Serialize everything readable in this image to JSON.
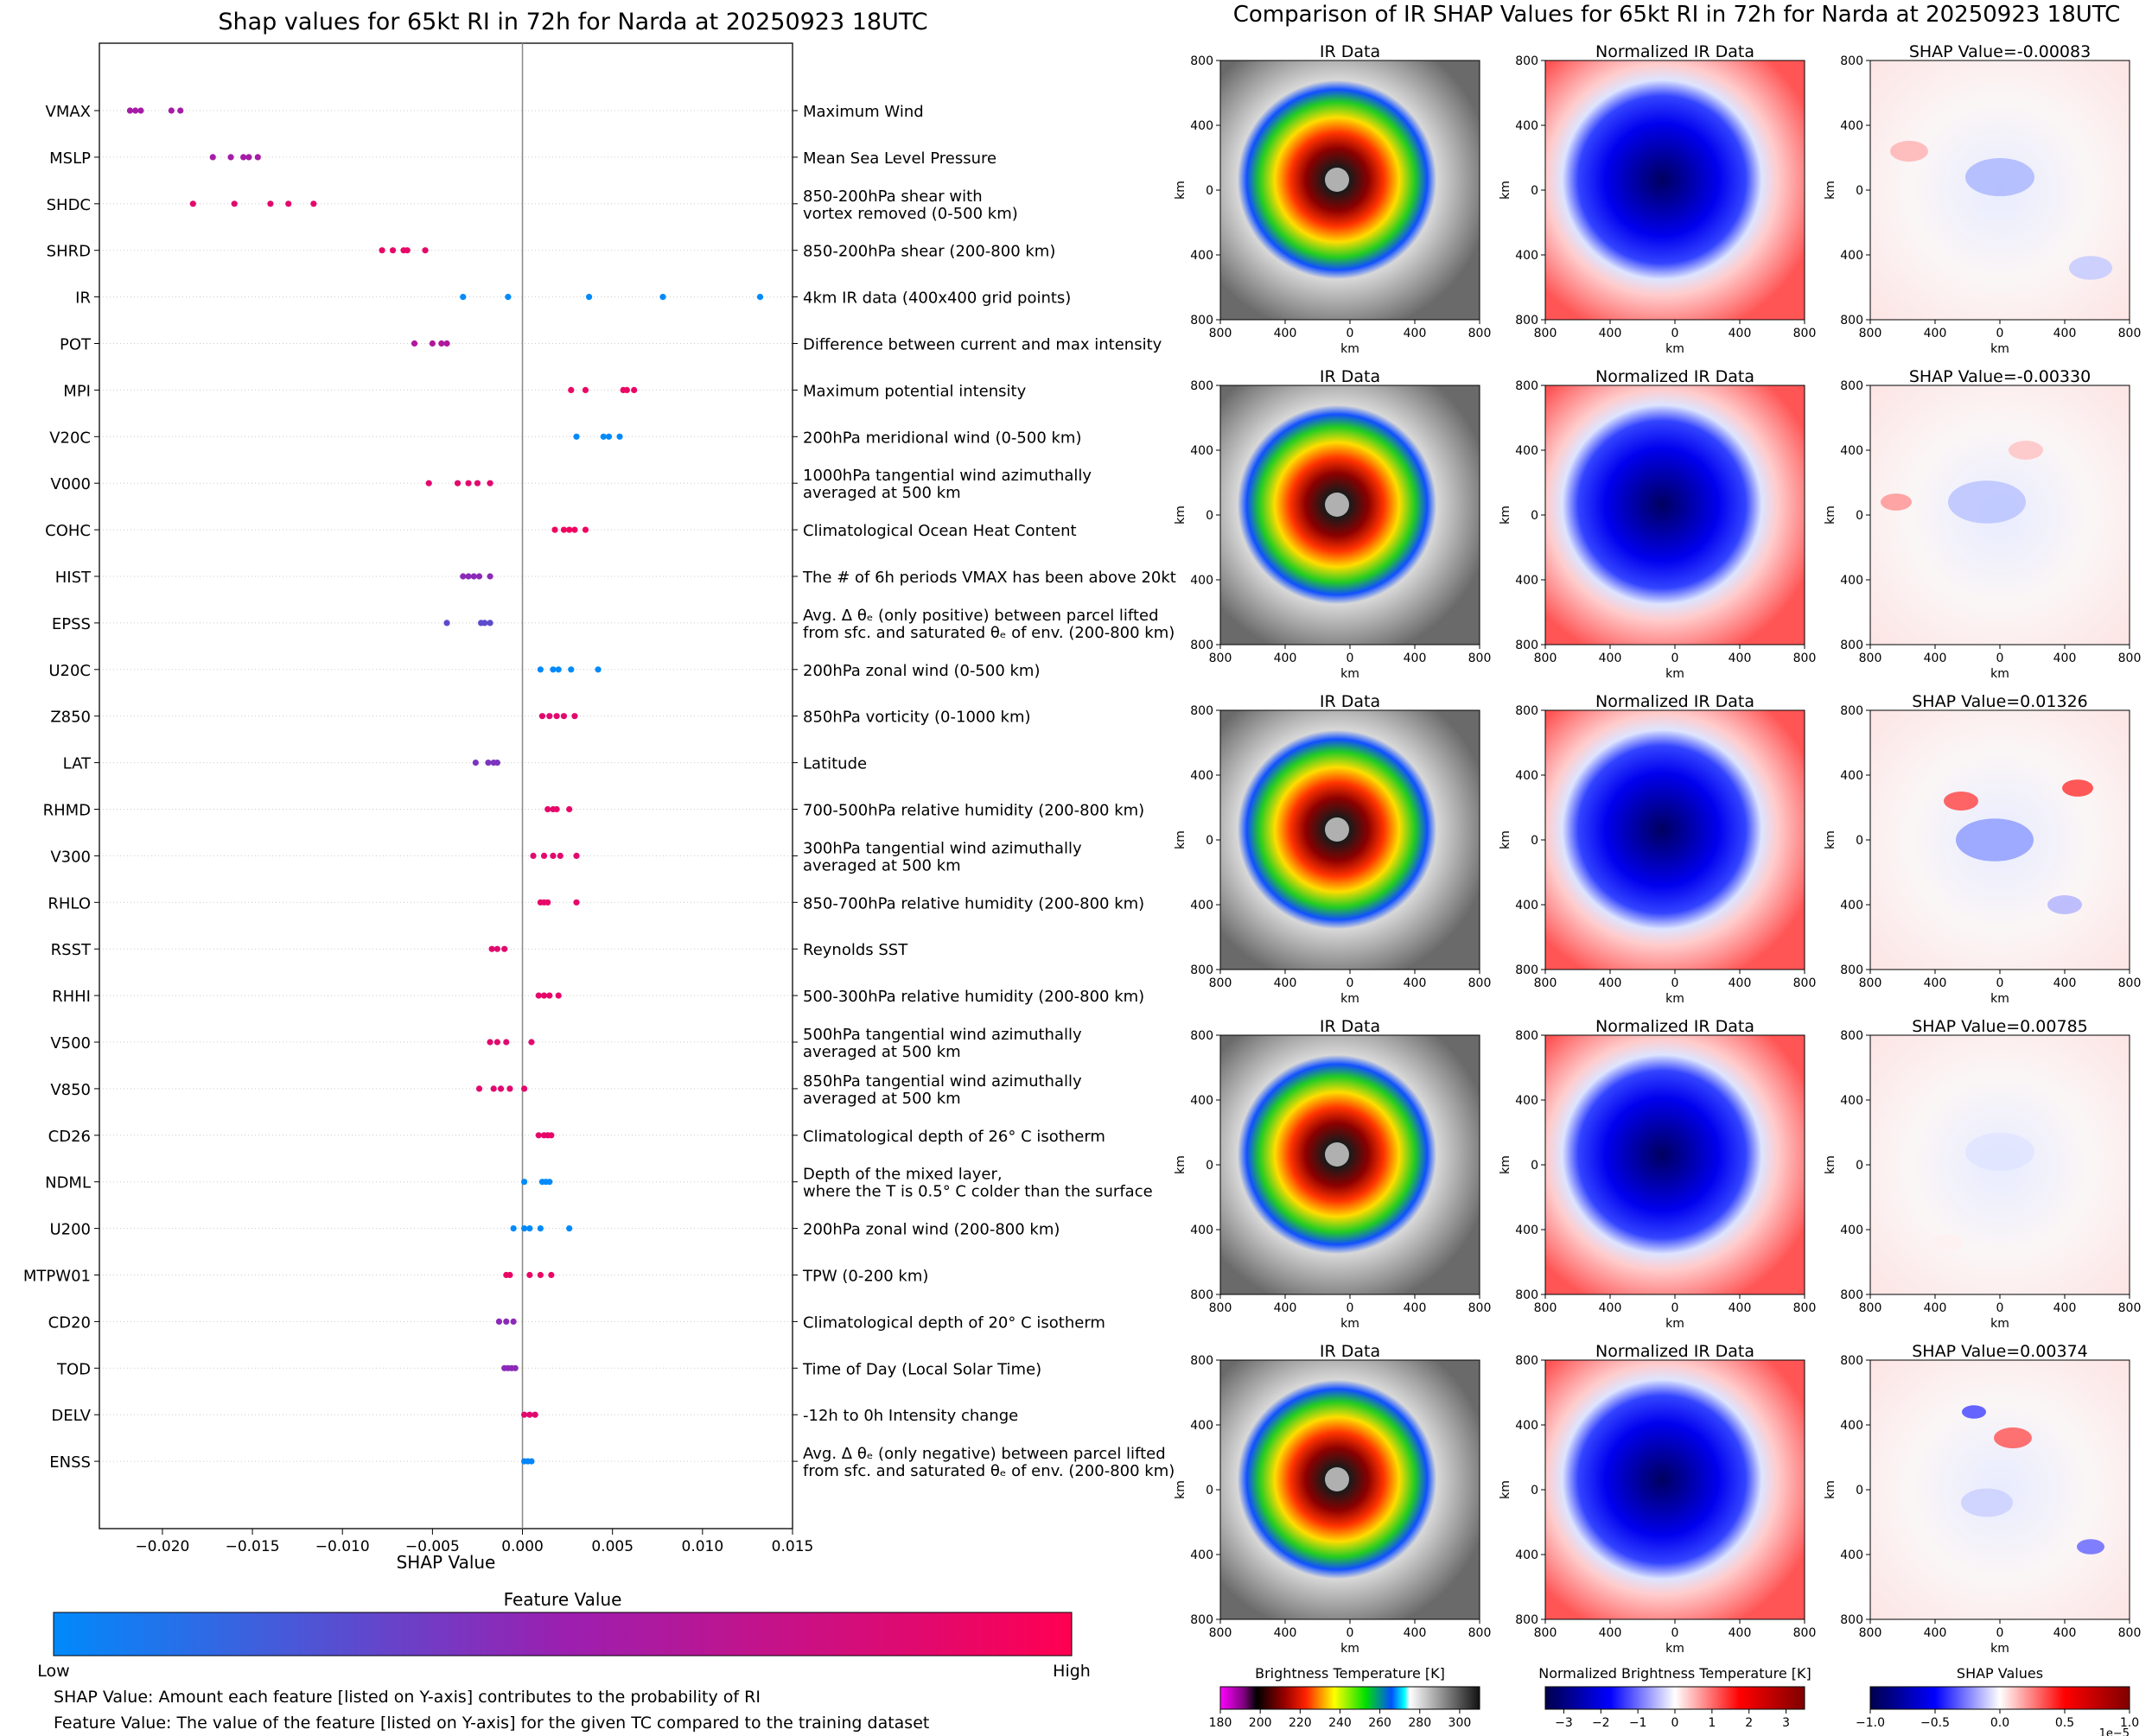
{
  "chart_data": [
    {
      "type": "scatter",
      "title": "Shap values for 65kt RI in 72h for Narda at 20250923 18UTC",
      "xlabel": "SHAP Value",
      "xlim": [
        -0.0235,
        0.015
      ],
      "xticks": [
        -0.02,
        -0.015,
        -0.01,
        -0.005,
        0.0,
        0.005,
        0.01,
        0.015
      ],
      "xtick_labels": [
        "−0.020",
        "−0.015",
        "−0.010",
        "−0.005",
        "0.000",
        "0.005",
        "0.010",
        "0.015"
      ],
      "colorbar": {
        "title": "Feature Value",
        "low_label": "Low",
        "high_label": "High",
        "low_color": "#008afb",
        "mid_color": "#9b1fb0",
        "high_color": "#ff0052"
      },
      "features": [
        {
          "name": "VMAX",
          "desc": [
            "Maximum Wind"
          ],
          "points": [
            [
              -0.0218,
              0.55
            ],
            [
              -0.0215,
              0.55
            ],
            [
              -0.0212,
              0.55
            ],
            [
              -0.0195,
              0.55
            ],
            [
              -0.019,
              0.55
            ]
          ]
        },
        {
          "name": "MSLP",
          "desc": [
            "Mean Sea Level Pressure"
          ],
          "points": [
            [
              -0.0172,
              0.55
            ],
            [
              -0.0162,
              0.55
            ],
            [
              -0.0155,
              0.55
            ],
            [
              -0.0152,
              0.55
            ],
            [
              -0.0147,
              0.55
            ]
          ]
        },
        {
          "name": "SHDC",
          "desc": [
            "850-200hPa shear with",
            "vortex removed (0-500 km)"
          ],
          "points": [
            [
              -0.0183,
              0.85
            ],
            [
              -0.016,
              0.85
            ],
            [
              -0.014,
              0.85
            ],
            [
              -0.013,
              0.85
            ],
            [
              -0.0116,
              0.85
            ]
          ]
        },
        {
          "name": "SHRD",
          "desc": [
            "850-200hPa shear (200-800 km)"
          ],
          "points": [
            [
              -0.0078,
              0.88
            ],
            [
              -0.0072,
              0.88
            ],
            [
              -0.0066,
              0.88
            ],
            [
              -0.0064,
              0.88
            ],
            [
              -0.0054,
              0.88
            ]
          ]
        },
        {
          "name": "IR",
          "desc": [
            "4km IR data (400x400 grid points)"
          ],
          "points": [
            [
              -0.0033,
              0.0
            ],
            [
              -0.0008,
              0.0
            ],
            [
              0.0037,
              0.0
            ],
            [
              0.0078,
              0.0
            ],
            [
              0.0132,
              0.0
            ]
          ]
        },
        {
          "name": "POT",
          "desc": [
            "Difference between current and max intensity"
          ],
          "points": [
            [
              -0.006,
              0.6
            ],
            [
              -0.005,
              0.6
            ],
            [
              -0.0045,
              0.6
            ],
            [
              -0.0042,
              0.6
            ]
          ]
        },
        {
          "name": "MPI",
          "desc": [
            "Maximum potential intensity"
          ],
          "points": [
            [
              0.0027,
              0.9
            ],
            [
              0.0035,
              0.9
            ],
            [
              0.0056,
              0.9
            ],
            [
              0.0058,
              0.9
            ],
            [
              0.0062,
              0.9
            ]
          ]
        },
        {
          "name": "V20C",
          "desc": [
            "200hPa meridional wind (0-500 km)"
          ],
          "points": [
            [
              0.003,
              0.0
            ],
            [
              0.0045,
              0.0
            ],
            [
              0.0048,
              0.0
            ],
            [
              0.0054,
              0.0
            ]
          ]
        },
        {
          "name": "V000",
          "desc": [
            "1000hPa tangential wind azimuthally",
            "averaged at 500 km"
          ],
          "points": [
            [
              -0.0052,
              0.85
            ],
            [
              -0.0036,
              0.85
            ],
            [
              -0.003,
              0.85
            ],
            [
              -0.0025,
              0.85
            ],
            [
              -0.0018,
              0.85
            ]
          ]
        },
        {
          "name": "COHC",
          "desc": [
            "Climatological Ocean Heat Content"
          ],
          "points": [
            [
              0.0018,
              0.92
            ],
            [
              0.0023,
              0.92
            ],
            [
              0.0026,
              0.92
            ],
            [
              0.0029,
              0.92
            ],
            [
              0.0035,
              0.92
            ]
          ]
        },
        {
          "name": "HIST",
          "desc": [
            "The # of 6h periods VMAX has been above 20kt"
          ],
          "points": [
            [
              -0.0033,
              0.45
            ],
            [
              -0.003,
              0.45
            ],
            [
              -0.0027,
              0.45
            ],
            [
              -0.0024,
              0.45
            ],
            [
              -0.0018,
              0.45
            ]
          ]
        },
        {
          "name": "EPSS",
          "desc": [
            "Avg. Δ θₑ (only positive) between parcel lifted",
            "from sfc. and saturated θₑ of env. (200-800 km)"
          ],
          "points": [
            [
              -0.0042,
              0.3
            ],
            [
              -0.0023,
              0.3
            ],
            [
              -0.0021,
              0.3
            ],
            [
              -0.0018,
              0.3
            ]
          ]
        },
        {
          "name": "U20C",
          "desc": [
            "200hPa zonal wind (0-500 km)"
          ],
          "points": [
            [
              0.001,
              0.0
            ],
            [
              0.0017,
              0.0
            ],
            [
              0.002,
              0.0
            ],
            [
              0.0027,
              0.0
            ],
            [
              0.0042,
              0.0
            ]
          ]
        },
        {
          "name": "Z850",
          "desc": [
            "850hPa vorticity (0-1000 km)"
          ],
          "points": [
            [
              0.0011,
              0.85
            ],
            [
              0.0015,
              0.85
            ],
            [
              0.0019,
              0.85
            ],
            [
              0.0023,
              0.85
            ],
            [
              0.0029,
              0.85
            ]
          ]
        },
        {
          "name": "LAT",
          "desc": [
            "Latitude"
          ],
          "points": [
            [
              -0.0026,
              0.4
            ],
            [
              -0.0019,
              0.4
            ],
            [
              -0.0016,
              0.4
            ],
            [
              -0.0014,
              0.4
            ]
          ]
        },
        {
          "name": "RHMD",
          "desc": [
            "700-500hPa relative humidity (200-800 km)"
          ],
          "points": [
            [
              0.0014,
              0.88
            ],
            [
              0.0017,
              0.88
            ],
            [
              0.0019,
              0.88
            ],
            [
              0.0026,
              0.88
            ]
          ]
        },
        {
          "name": "V300",
          "desc": [
            "300hPa tangential wind azimuthally",
            "averaged at 500 km"
          ],
          "points": [
            [
              0.0006,
              0.85
            ],
            [
              0.0012,
              0.85
            ],
            [
              0.0017,
              0.85
            ],
            [
              0.0021,
              0.85
            ],
            [
              0.003,
              0.85
            ]
          ]
        },
        {
          "name": "RHLO",
          "desc": [
            "850-700hPa relative humidity (200-800 km)"
          ],
          "points": [
            [
              0.001,
              0.88
            ],
            [
              0.0012,
              0.88
            ],
            [
              0.0014,
              0.88
            ],
            [
              0.003,
              0.88
            ]
          ]
        },
        {
          "name": "RSST",
          "desc": [
            "Reynolds SST"
          ],
          "points": [
            [
              -0.0017,
              0.85
            ],
            [
              -0.0014,
              0.85
            ],
            [
              -0.001,
              0.85
            ]
          ]
        },
        {
          "name": "RHHI",
          "desc": [
            "500-300hPa relative humidity (200-800 km)"
          ],
          "points": [
            [
              0.0009,
              0.88
            ],
            [
              0.0012,
              0.88
            ],
            [
              0.0015,
              0.88
            ],
            [
              0.002,
              0.88
            ]
          ]
        },
        {
          "name": "V500",
          "desc": [
            "500hPa tangential wind azimuthally",
            "averaged at 500 km"
          ],
          "points": [
            [
              -0.0018,
              0.85
            ],
            [
              -0.0014,
              0.85
            ],
            [
              -0.0009,
              0.85
            ],
            [
              0.0005,
              0.85
            ]
          ]
        },
        {
          "name": "V850",
          "desc": [
            "850hPa tangential wind azimuthally",
            "averaged at 500 km"
          ],
          "points": [
            [
              -0.0024,
              0.85
            ],
            [
              -0.0016,
              0.85
            ],
            [
              -0.0012,
              0.85
            ],
            [
              -0.0007,
              0.85
            ],
            [
              0.0001,
              0.85
            ]
          ]
        },
        {
          "name": "CD26",
          "desc": [
            "Climatological depth of 26° C isotherm"
          ],
          "points": [
            [
              0.0009,
              0.88
            ],
            [
              0.0012,
              0.88
            ],
            [
              0.0014,
              0.88
            ],
            [
              0.0016,
              0.88
            ]
          ]
        },
        {
          "name": "NDML",
          "desc": [
            "Depth of the mixed layer,",
            "where the T is 0.5° C colder than the surface"
          ],
          "points": [
            [
              0.0001,
              0.0
            ],
            [
              0.0011,
              0.0
            ],
            [
              0.0013,
              0.0
            ],
            [
              0.0015,
              0.0
            ]
          ]
        },
        {
          "name": "U200",
          "desc": [
            "200hPa zonal wind (200-800 km)"
          ],
          "points": [
            [
              -0.0005,
              0.0
            ],
            [
              0.0001,
              0.0
            ],
            [
              0.0004,
              0.0
            ],
            [
              0.001,
              0.0
            ],
            [
              0.0026,
              0.0
            ]
          ]
        },
        {
          "name": "MTPW01",
          "desc": [
            "TPW (0-200 km)"
          ],
          "points": [
            [
              -0.0009,
              0.9
            ],
            [
              -0.0007,
              0.9
            ],
            [
              0.0004,
              0.9
            ],
            [
              0.001,
              0.9
            ],
            [
              0.0016,
              0.9
            ]
          ]
        },
        {
          "name": "CD20",
          "desc": [
            "Climatological depth of 20° C isotherm"
          ],
          "points": [
            [
              -0.0013,
              0.45
            ],
            [
              -0.0009,
              0.45
            ],
            [
              -0.0005,
              0.45
            ]
          ]
        },
        {
          "name": "TOD",
          "desc": [
            "Time of Day (Local Solar Time)"
          ],
          "points": [
            [
              -0.001,
              0.45
            ],
            [
              -0.0008,
              0.45
            ],
            [
              -0.0006,
              0.45
            ],
            [
              -0.0004,
              0.45
            ]
          ]
        },
        {
          "name": "DELV",
          "desc": [
            "-12h to 0h Intensity change"
          ],
          "points": [
            [
              0.0001,
              0.85
            ],
            [
              0.0004,
              0.85
            ],
            [
              0.0007,
              0.85
            ]
          ]
        },
        {
          "name": "ENSS",
          "desc": [
            "Avg. Δ θₑ (only negative) between parcel lifted",
            "from sfc. and saturated θₑ of env. (200-800 km)"
          ],
          "points": [
            [
              0.0001,
              0.02
            ],
            [
              0.0003,
              0.02
            ],
            [
              0.0005,
              0.02
            ]
          ]
        }
      ]
    },
    {
      "type": "heatmap",
      "title": "Comparison of IR SHAP Values for 65kt RI in 72h for Narda at 20250923 18UTC",
      "columns": [
        "IR Data",
        "Normalized IR Data",
        "SHAP Value"
      ],
      "rows": [
        {
          "shap_title": "SHAP Value=-0.00083"
        },
        {
          "shap_title": "SHAP Value=-0.00330"
        },
        {
          "shap_title": "SHAP Value=0.01326"
        },
        {
          "shap_title": "SHAP Value=0.00785"
        },
        {
          "shap_title": "SHAP Value=0.00374"
        }
      ],
      "axis_ticks": [
        "800",
        "400",
        "0",
        "400",
        "800"
      ],
      "axis_label": "km",
      "colorbars": [
        {
          "title": "Brightness Temperature [K]",
          "ticks": [
            "180",
            "200",
            "220",
            "240",
            "260",
            "280",
            "300"
          ],
          "range": [
            180,
            310
          ]
        },
        {
          "title": "Normalized Brightness Temperature [K]",
          "ticks": [
            "−3",
            "−2",
            "−1",
            "0",
            "1",
            "2",
            "3"
          ],
          "range": [
            -3.5,
            3.5
          ]
        },
        {
          "title": "SHAP Values",
          "ticks": [
            "−1.0",
            "−0.5",
            "0.0",
            "0.5",
            "1.0"
          ],
          "range": [
            -1.0,
            1.0
          ],
          "exponent_label": "1e−5"
        }
      ]
    }
  ],
  "captions": {
    "shap": "SHAP Value: Amount each feature [listed on Y-axis] contributes to the probability of RI",
    "feature": "Feature Value: The value of the feature [listed on Y-axis] for the given TC compared to the training dataset"
  }
}
